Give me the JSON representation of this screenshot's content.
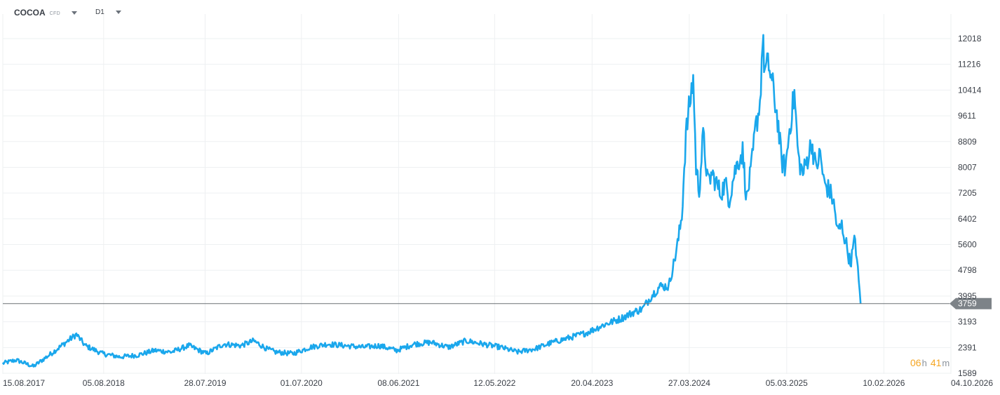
{
  "toolbar": {
    "symbol": "COCOA",
    "symbol_type": "CFD",
    "timeframe": "D1"
  },
  "countdown": {
    "hours": "06",
    "hours_unit": "h",
    "minutes": "41",
    "minutes_unit": "m"
  },
  "colors": {
    "line": "#1aa7ec",
    "price_line": "#6b7075",
    "price_label_bg": "#7d8388",
    "timer": "#f5a623"
  },
  "chart_data": {
    "type": "line",
    "title": "",
    "xlabel": "",
    "ylabel": "",
    "ylim": [
      1589,
      12600
    ],
    "y_ticks": [
      "12018",
      "11216",
      "10414",
      "9611",
      "8809",
      "8007",
      "7205",
      "6402",
      "5600",
      "4798",
      "3995",
      "3193",
      "2391",
      "1589"
    ],
    "x_ticks": [
      "15.08.2017",
      "05.08.2018",
      "28.07.2019",
      "01.07.2020",
      "08.06.2021",
      "12.05.2022",
      "20.04.2023",
      "27.03.2024",
      "05.03.2025",
      "10.02.2026",
      "04.10.2026"
    ],
    "current_price": 3759,
    "current_price_label": "3759",
    "grid": true,
    "series": [
      {
        "x": [
          "2017-08-15",
          "2017-10-01",
          "2017-12-01",
          "2018-02-01",
          "2018-04-01",
          "2018-05-01",
          "2018-06-01",
          "2018-08-01",
          "2018-10-01",
          "2018-12-01",
          "2019-02-01",
          "2019-04-01",
          "2019-06-01",
          "2019-08-01",
          "2019-10-01",
          "2019-12-01",
          "2020-01-15",
          "2020-03-01",
          "2020-04-01",
          "2020-06-01",
          "2020-08-01",
          "2020-10-01",
          "2020-12-01",
          "2021-02-01",
          "2021-04-01",
          "2021-06-01",
          "2021-08-01",
          "2021-10-01",
          "2021-12-01",
          "2022-02-01",
          "2022-04-01",
          "2022-06-01",
          "2022-08-01",
          "2022-10-01",
          "2022-12-01",
          "2023-02-01",
          "2023-04-01",
          "2023-06-01",
          "2023-08-01",
          "2023-09-15",
          "2023-10-15",
          "2023-11-15",
          "2023-12-15",
          "2024-01-15",
          "2024-02-01",
          "2024-02-15",
          "2024-03-01",
          "2024-03-15",
          "2024-03-26",
          "2024-04-10",
          "2024-04-20",
          "2024-05-01",
          "2024-05-15",
          "2024-06-01",
          "2024-06-15",
          "2024-07-01",
          "2024-07-15",
          "2024-08-01",
          "2024-08-15",
          "2024-09-01",
          "2024-09-15",
          "2024-10-01",
          "2024-10-15",
          "2024-11-01",
          "2024-11-15",
          "2024-12-01",
          "2024-12-10",
          "2024-12-18",
          "2025-01-01",
          "2025-01-15",
          "2025-02-01",
          "2025-02-15",
          "2025-03-01",
          "2025-03-15",
          "2025-04-01",
          "2025-04-15",
          "2025-05-01",
          "2025-05-15",
          "2025-06-01",
          "2025-06-15",
          "2025-07-01",
          "2025-07-15",
          "2025-08-01",
          "2025-08-15",
          "2025-09-01",
          "2025-09-15",
          "2025-10-01",
          "2025-10-15",
          "2025-11-01",
          "2025-11-20"
        ],
        "values": [
          1900,
          2000,
          1800,
          2200,
          2600,
          2800,
          2450,
          2200,
          2100,
          2150,
          2300,
          2250,
          2450,
          2200,
          2500,
          2450,
          2600,
          2350,
          2250,
          2200,
          2400,
          2500,
          2450,
          2400,
          2450,
          2300,
          2500,
          2550,
          2400,
          2600,
          2500,
          2400,
          2250,
          2350,
          2550,
          2700,
          2850,
          3100,
          3300,
          3500,
          3600,
          4000,
          4300,
          4300,
          5000,
          5600,
          6500,
          9000,
          9800,
          10800,
          8000,
          7300,
          9000,
          7500,
          7800,
          7500,
          7200,
          7500,
          7000,
          7800,
          8200,
          8500,
          7000,
          8000,
          9200,
          10000,
          12000,
          11000,
          11200,
          10500,
          9500,
          8200,
          8000,
          9200,
          10300,
          8300,
          7800,
          8200,
          8800,
          8000,
          8400,
          7500,
          7300,
          7000,
          6000,
          6200,
          5600,
          5000,
          5800,
          3759
        ]
      }
    ]
  }
}
